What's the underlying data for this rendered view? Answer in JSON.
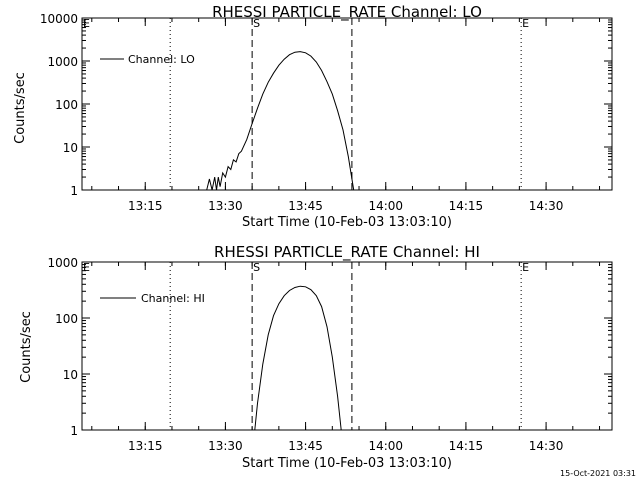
{
  "chart_data": [
    {
      "type": "line",
      "title": "RHESSI PARTICLE_RATE Channel: LO",
      "xlabel": "Start Time (10-Feb-03 13:03:10)",
      "ylabel": "Counts/sec",
      "y_scale": "log",
      "ylim": [
        1,
        10000
      ],
      "xlim": [
        "13:03:10",
        "14:42:20"
      ],
      "x_tick_labels": [
        "13:15",
        "13:30",
        "13:45",
        "14:00",
        "14:15",
        "14:30"
      ],
      "y_tick_labels": [
        "1",
        "10",
        "100",
        "1000",
        "10000"
      ],
      "legend": {
        "position": "top-left",
        "entries": [
          "Channel: LO"
        ]
      },
      "markers": [
        {
          "label": "E",
          "time": "13:03:10",
          "style": "dotted"
        },
        {
          "label": "",
          "time": "13:19:40",
          "style": "dotted"
        },
        {
          "label": "S",
          "time": "13:35:00",
          "style": "dashed"
        },
        {
          "label": "",
          "time": "13:53:40",
          "style": "dashed"
        },
        {
          "label": "E",
          "time": "14:25:20",
          "style": "dotted"
        },
        {
          "label": "",
          "time": "14:42:20",
          "style": "dotted"
        }
      ],
      "series": [
        {
          "name": "Channel: LO",
          "x": [
            "13:26:30",
            "13:27:00",
            "13:27:30",
            "13:28:00",
            "13:28:20",
            "13:28:40",
            "13:29:00",
            "13:29:30",
            "13:30:00",
            "13:30:30",
            "13:31:00",
            "13:31:30",
            "13:32:00",
            "13:32:30",
            "13:33:00",
            "13:34:00",
            "13:35:00",
            "13:36:00",
            "13:37:00",
            "13:38:00",
            "13:39:00",
            "13:40:00",
            "13:41:00",
            "13:42:00",
            "13:43:00",
            "13:44:00",
            "13:45:00",
            "13:46:00",
            "13:47:00",
            "13:48:00",
            "13:49:00",
            "13:50:00",
            "13:51:00",
            "13:52:00",
            "13:53:00",
            "13:54:00"
          ],
          "y": [
            1,
            1.8,
            1,
            2,
            1,
            2,
            1.2,
            2.5,
            2,
            3.5,
            3,
            5,
            4.5,
            7,
            8,
            15,
            35,
            80,
            170,
            320,
            520,
            800,
            1100,
            1400,
            1600,
            1650,
            1550,
            1300,
            950,
            600,
            330,
            170,
            70,
            25,
            6,
            1
          ]
        }
      ]
    },
    {
      "type": "line",
      "title": "RHESSI PARTICLE_RATE Channel: HI",
      "xlabel": "Start Time (10-Feb-03 13:03:10)",
      "ylabel": "Counts/sec",
      "y_scale": "log",
      "ylim": [
        1,
        1000
      ],
      "xlim": [
        "13:03:10",
        "14:42:20"
      ],
      "x_tick_labels": [
        "13:15",
        "13:30",
        "13:45",
        "14:00",
        "14:15",
        "14:30"
      ],
      "y_tick_labels": [
        "1",
        "10",
        "100",
        "1000"
      ],
      "legend": {
        "position": "top-left",
        "entries": [
          "Channel: HI"
        ]
      },
      "markers": [
        {
          "label": "E",
          "time": "13:03:10",
          "style": "dotted"
        },
        {
          "label": "",
          "time": "13:19:40",
          "style": "dotted"
        },
        {
          "label": "S",
          "time": "13:35:00",
          "style": "dashed"
        },
        {
          "label": "",
          "time": "13:53:40",
          "style": "dashed"
        },
        {
          "label": "E",
          "time": "14:25:20",
          "style": "dotted"
        },
        {
          "label": "",
          "time": "14:42:20",
          "style": "dotted"
        }
      ],
      "series": [
        {
          "name": "Channel: HI",
          "x": [
            "13:35:30",
            "13:36:00",
            "13:37:00",
            "13:38:00",
            "13:39:00",
            "13:40:00",
            "13:41:00",
            "13:42:00",
            "13:43:00",
            "13:44:00",
            "13:45:00",
            "13:46:00",
            "13:47:00",
            "13:48:00",
            "13:49:00",
            "13:50:00",
            "13:51:00",
            "13:51:40"
          ],
          "y": [
            1,
            3,
            15,
            50,
            110,
            180,
            250,
            310,
            350,
            370,
            360,
            320,
            250,
            160,
            70,
            20,
            4,
            1
          ]
        }
      ]
    }
  ],
  "timestamp": "15-Oct-2021 03:31",
  "colors": {
    "background": "#ffffff",
    "foreground": "#000000"
  }
}
